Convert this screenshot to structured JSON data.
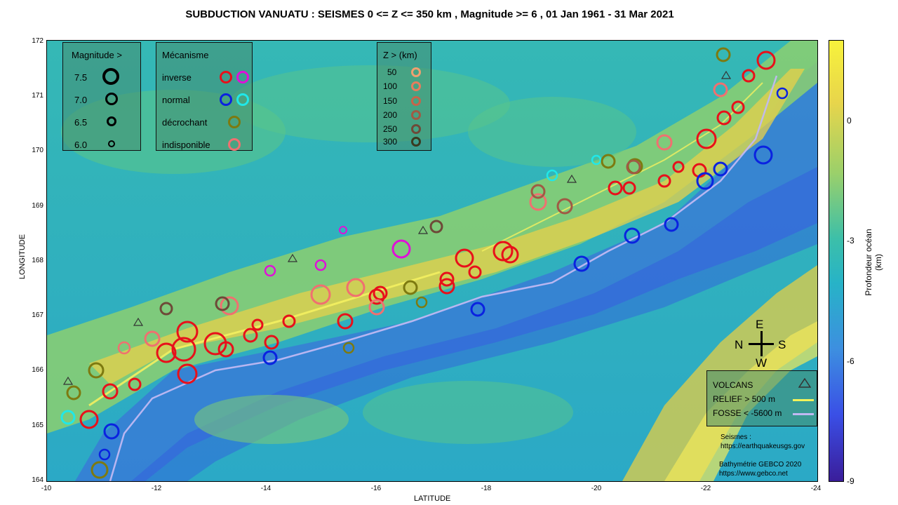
{
  "title": "SUBDUCTION VANUATU : SEISMES 0 <= Z <= 350 km , Magnitude >=  6  , 01 Jan 1961 - 31 Mar 2021",
  "axes": {
    "ylabel": "LONGITUDE",
    "xlabel": "LATITUDE",
    "y_ticks": [
      "172",
      "171",
      "170",
      "169",
      "168",
      "167",
      "166",
      "165",
      "164"
    ],
    "x_ticks": [
      "-10",
      "-12",
      "-14",
      "-16",
      "-18",
      "-20",
      "-22",
      "-24"
    ]
  },
  "magnitude_legend": {
    "title": "Magnitude >",
    "items": [
      {
        "label": "7.5",
        "value": 7.5
      },
      {
        "label": "7.0",
        "value": 7.0
      },
      {
        "label": "6.5",
        "value": 6.5
      },
      {
        "label": "6.0",
        "value": 6.0
      }
    ]
  },
  "mechanism_legend": {
    "title": "Mécanisme",
    "items": [
      {
        "label": "inverse",
        "color": "#e8101a",
        "color2": "#e010d8"
      },
      {
        "label": "normal",
        "color": "#0a22e0",
        "color2": "#20e8e8"
      },
      {
        "label": "décrochant",
        "color": "#7d7a10",
        "color2": null
      },
      {
        "label": "indisponible",
        "color": "#f07070",
        "color2": null
      }
    ]
  },
  "depth_legend": {
    "title": "Z > (km)",
    "items": [
      {
        "label": "50",
        "color": "#f0a070"
      },
      {
        "label": "100",
        "color": "#e87c5c"
      },
      {
        "label": "150",
        "color": "#c8644a"
      },
      {
        "label": "200",
        "color": "#a05a44"
      },
      {
        "label": "250",
        "color": "#6e4a38"
      },
      {
        "label": "300",
        "color": "#3a3a20"
      }
    ]
  },
  "features_legend": {
    "volcans": "VOLCANS",
    "relief": "RELIEF >  500 m",
    "fosse": "FOSSE <  -5600 m",
    "relief_color": "#f2f25a",
    "fosse_color": "#c0b8f2"
  },
  "compass": {
    "n": "N",
    "s": "S",
    "e": "E",
    "w": "W"
  },
  "colorbar": {
    "label": "Profondeur océan (km)",
    "ticks": [
      "0",
      "-3",
      "-6",
      "-9"
    ]
  },
  "credits": {
    "line1": "Seismes :",
    "line2": "https://earthquakeusgs.gov",
    "line3": "Bathymétrie GEBCO 2020",
    "line4": "https://www.gebco.net"
  }
}
